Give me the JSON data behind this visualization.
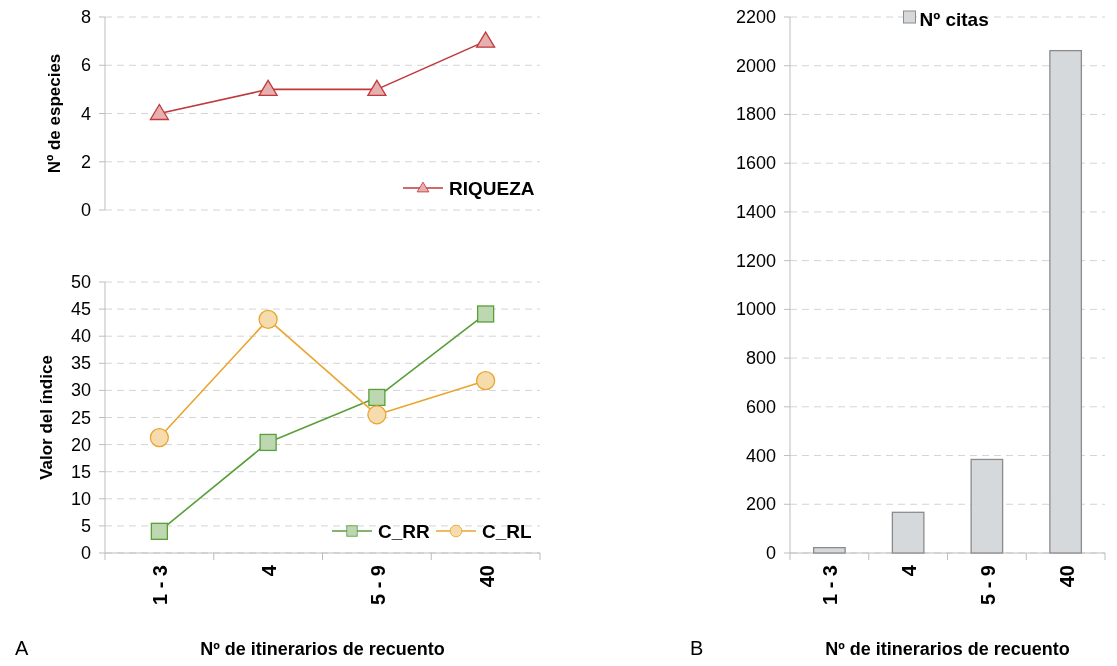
{
  "chart_data": [
    {
      "type": "line",
      "ylabel": "Nº de especies",
      "categories": [
        null,
        null,
        null,
        null
      ],
      "ylim": [
        0,
        8
      ],
      "yticks": [
        0,
        2,
        4,
        6,
        8
      ],
      "grid": "y",
      "legend": "bottom right",
      "tick_labels": "y",
      "marker": "triangle",
      "series": [
        {
          "name": "RIQUEZA",
          "color": "#c0393b",
          "values": [
            4,
            5,
            5,
            7
          ]
        }
      ]
    },
    {
      "type": "line",
      "ylabel": "Valor del índice",
      "xlabel": "Nº de itinerarios de recuento",
      "categories": [
        "1 - 3",
        "4",
        "5 - 9",
        "40"
      ],
      "ylim": [
        0,
        50
      ],
      "yticks": [
        0,
        5,
        10,
        15,
        20,
        25,
        30,
        35,
        40,
        45,
        50
      ],
      "grid": "y",
      "legend": "bottom right",
      "annotations": [
        "A"
      ],
      "series": [
        {
          "name": "C_RR",
          "color": "#5a9e3a",
          "marker": "square",
          "values": [
            4,
            20.4,
            28.7,
            44.1
          ]
        },
        {
          "name": "C_RL",
          "color": "#e8a530",
          "marker": "circle",
          "values": [
            21.3,
            43.1,
            25.5,
            31.8
          ]
        }
      ]
    },
    {
      "type": "bar",
      "xlabel": "Nº de itinerarios de recuento",
      "categories": [
        "1 - 3",
        "4",
        "5 - 9",
        "40"
      ],
      "ylim": [
        0,
        2200
      ],
      "yticks": [
        0,
        200,
        400,
        600,
        800,
        1000,
        1200,
        1400,
        1600,
        1800,
        2000,
        2200
      ],
      "grid": "y",
      "legend": "top",
      "annotations": [
        "B"
      ],
      "series": [
        {
          "name": "Nº citas",
          "color": "#d5d9dc",
          "values": [
            22,
            167,
            384,
            2062
          ]
        }
      ]
    }
  ]
}
